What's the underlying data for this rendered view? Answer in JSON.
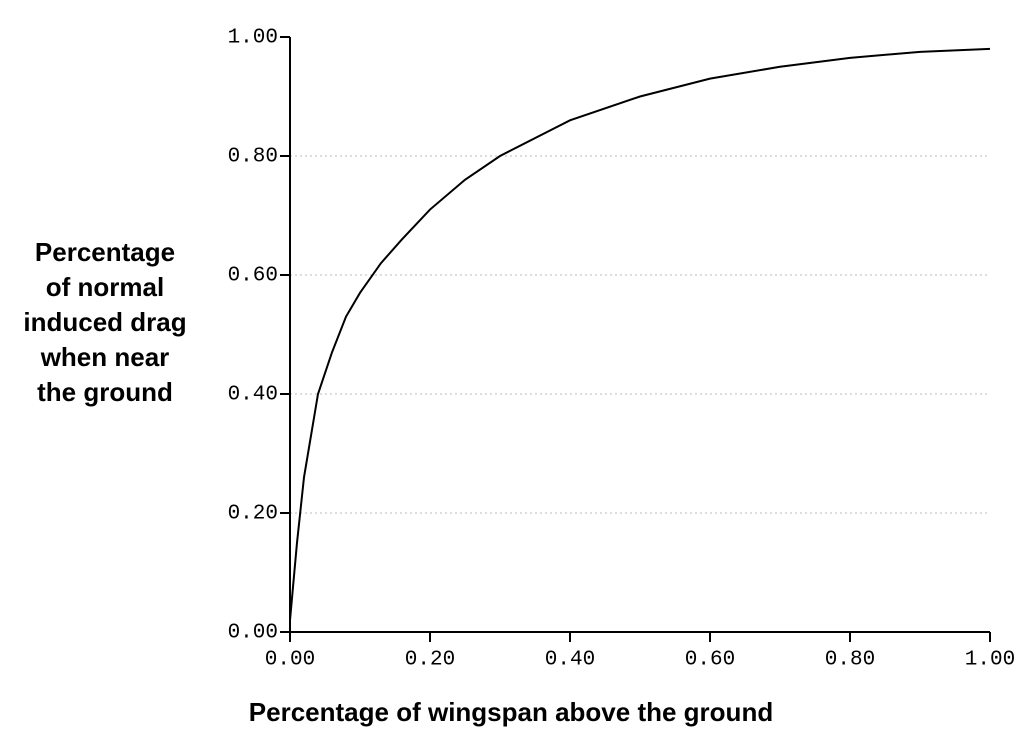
{
  "chart_data": {
    "type": "line",
    "ylabel": [
      "Percentage",
      "of normal",
      "induced drag",
      "when near",
      "the ground"
    ],
    "xlabel": "Percentage of wingspan above the ground",
    "x": [
      0,
      0.01,
      0.02,
      0.04,
      0.06,
      0.08,
      0.1,
      0.13,
      0.16,
      0.2,
      0.25,
      0.3,
      0.4,
      0.5,
      0.6,
      0.7,
      0.8,
      0.9,
      1.0
    ],
    "series": [
      {
        "color": "#000000",
        "values": [
          0.02,
          0.15,
          0.26,
          0.4,
          0.47,
          0.53,
          0.57,
          0.62,
          0.66,
          0.71,
          0.76,
          0.8,
          0.86,
          0.9,
          0.93,
          0.95,
          0.965,
          0.975,
          0.98
        ]
      }
    ],
    "xlim": [
      0,
      1
    ],
    "ylim": [
      0,
      1
    ],
    "xticks": [
      {
        "value": 0,
        "label": "0.00"
      },
      {
        "value": 0.2,
        "label": "0.20"
      },
      {
        "value": 0.4,
        "label": "0.40"
      },
      {
        "value": 0.6,
        "label": "0.60"
      },
      {
        "value": 0.8,
        "label": "0.80"
      },
      {
        "value": 1,
        "label": "1.00"
      }
    ],
    "yticks": [
      {
        "value": 0,
        "label": "0.00"
      },
      {
        "value": 0.2,
        "label": "0.20"
      },
      {
        "value": 0.4,
        "label": "0.40"
      },
      {
        "value": 0.6,
        "label": "0.60"
      },
      {
        "value": 0.8,
        "label": "0.80"
      },
      {
        "value": 1,
        "label": "1.00"
      }
    ],
    "grid": true
  }
}
